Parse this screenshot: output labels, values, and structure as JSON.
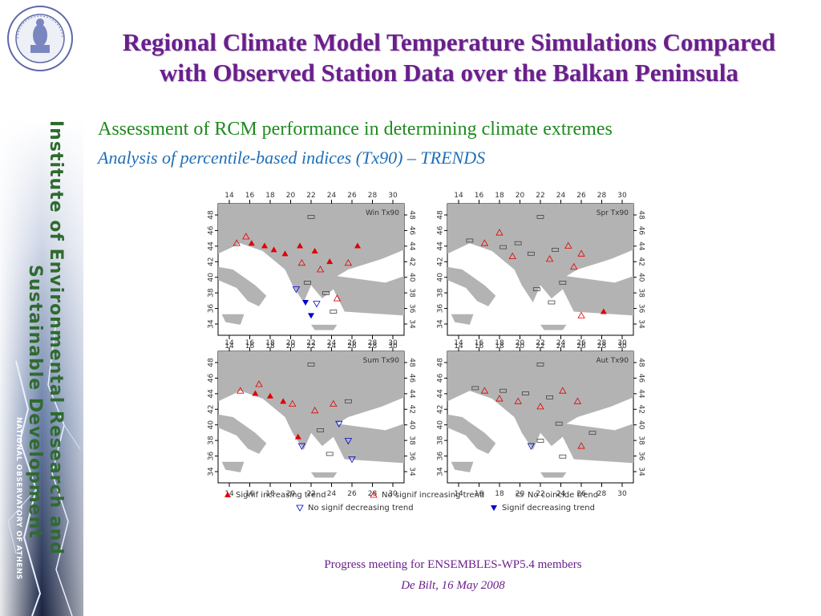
{
  "title": {
    "line1": "Regional Climate Model Temperature Simulations Compared",
    "line2": "with Observed Station Data over the Balkan Peninsula"
  },
  "sidebar": {
    "line1": "Institute of Environmental Research and",
    "line2": "Sustainable Development",
    "line3": "NATIONAL OBSERVATORY OF ATHENS"
  },
  "heading": "Assessment of RCM performance in determining climate extremes",
  "subheading": "Analysis of percentile-based indices (Tx90) – TRENDS",
  "maps": [
    {
      "label": "Win Tx90"
    },
    {
      "label": "Spr Tx90"
    },
    {
      "label": "Sum Tx90"
    },
    {
      "label": "Aut Tx90"
    }
  ],
  "axis": {
    "lon_ticks": [
      "14",
      "16",
      "18",
      "20",
      "22",
      "24",
      "26",
      "28",
      "30"
    ],
    "lat_ticks": [
      "34",
      "36",
      "38",
      "40",
      "42",
      "44",
      "46",
      "48"
    ]
  },
  "legend": {
    "signif_increasing": "Signif increasing trend",
    "no_signif_increasing": "No signif increasing trend",
    "no_coincide": "No coincide trend",
    "no_signif_decreasing": "No signif decreasing trend",
    "signif_decreasing": "Signif decreasing trend"
  },
  "colors": {
    "title": "#6a1f8c",
    "heading": "#1f8a1f",
    "subheading": "#1f6fb8",
    "increase": "#e00000",
    "decrease": "#0000cc",
    "land": "#b3b3b3"
  },
  "footer": {
    "line1": "Progress meeting for ENSEMBLES-WP5.4 members",
    "line2": "De Bilt, 16 May 2008"
  }
}
